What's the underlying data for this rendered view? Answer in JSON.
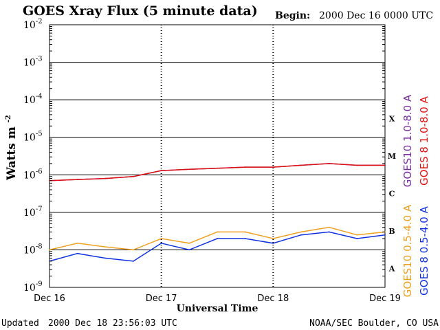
{
  "chart_data": {
    "type": "line",
    "title": "GOES Xray Flux (5 minute data)",
    "begin_label": "Begin:",
    "begin_value": "2000 Dec 16 0000 UTC",
    "xlabel": "Universal Time",
    "ylabel": "Watts m",
    "ylabel_sup": "-2",
    "y_scale": "log",
    "ylim": [
      1e-09,
      0.01
    ],
    "y_ticks": [
      {
        "base": "10",
        "exp": "-2"
      },
      {
        "base": "10",
        "exp": "-3"
      },
      {
        "base": "10",
        "exp": "-4"
      },
      {
        "base": "10",
        "exp": "-5"
      },
      {
        "base": "10",
        "exp": "-6"
      },
      {
        "base": "10",
        "exp": "-7"
      },
      {
        "base": "10",
        "exp": "-8"
      },
      {
        "base": "10",
        "exp": "-9"
      }
    ],
    "x_ticks": [
      "Dec 16",
      "Dec 17",
      "Dec 18",
      "Dec 19"
    ],
    "flare_classes": [
      "X",
      "M",
      "C",
      "B",
      "A"
    ],
    "grid": true,
    "series": [
      {
        "name": "GOES10 1.0-8.0 A",
        "color": "#7a2fa0",
        "x_hours": [
          0,
          6,
          12,
          18,
          24,
          30,
          36,
          42,
          48,
          54,
          60,
          66,
          72
        ],
        "values": [
          7e-07,
          7.5e-07,
          8e-07,
          9e-07,
          1.3e-06,
          1.4e-06,
          1.5e-06,
          1.6e-06,
          1.6e-06,
          1.8e-06,
          2e-06,
          1.8e-06,
          1.8e-06
        ]
      },
      {
        "name": "GOES 8 1.0-8.0 A",
        "color": "#e01010",
        "x_hours": [
          0,
          6,
          12,
          18,
          24,
          30,
          36,
          42,
          48,
          54,
          60,
          66,
          72
        ],
        "values": [
          7e-07,
          7.5e-07,
          8e-07,
          9e-07,
          1.3e-06,
          1.4e-06,
          1.5e-06,
          1.6e-06,
          1.6e-06,
          1.8e-06,
          2e-06,
          1.8e-06,
          1.8e-06
        ]
      },
      {
        "name": "GOES10 0.5-4.0 A",
        "color": "#f0a020",
        "x_hours": [
          0,
          6,
          12,
          18,
          24,
          30,
          36,
          42,
          48,
          54,
          60,
          66,
          72
        ],
        "values": [
          1e-08,
          1.5e-08,
          1.2e-08,
          1e-08,
          2e-08,
          1.5e-08,
          3e-08,
          3e-08,
          2e-08,
          3e-08,
          4e-08,
          2.5e-08,
          3e-08
        ]
      },
      {
        "name": "GOES 8 0.5-4.0 A",
        "color": "#1030e0",
        "x_hours": [
          0,
          6,
          12,
          18,
          24,
          30,
          36,
          42,
          48,
          54,
          60,
          66,
          72
        ],
        "values": [
          5e-09,
          8e-09,
          6e-09,
          5e-09,
          1.5e-08,
          1e-08,
          2e-08,
          2e-08,
          1.5e-08,
          2.5e-08,
          3e-08,
          2e-08,
          2.5e-08
        ]
      }
    ]
  },
  "footer": {
    "updated_label": "Updated",
    "updated_value": "2000 Dec 18 23:56:03 UTC",
    "source": "NOAA/SEC Boulder, CO USA"
  }
}
